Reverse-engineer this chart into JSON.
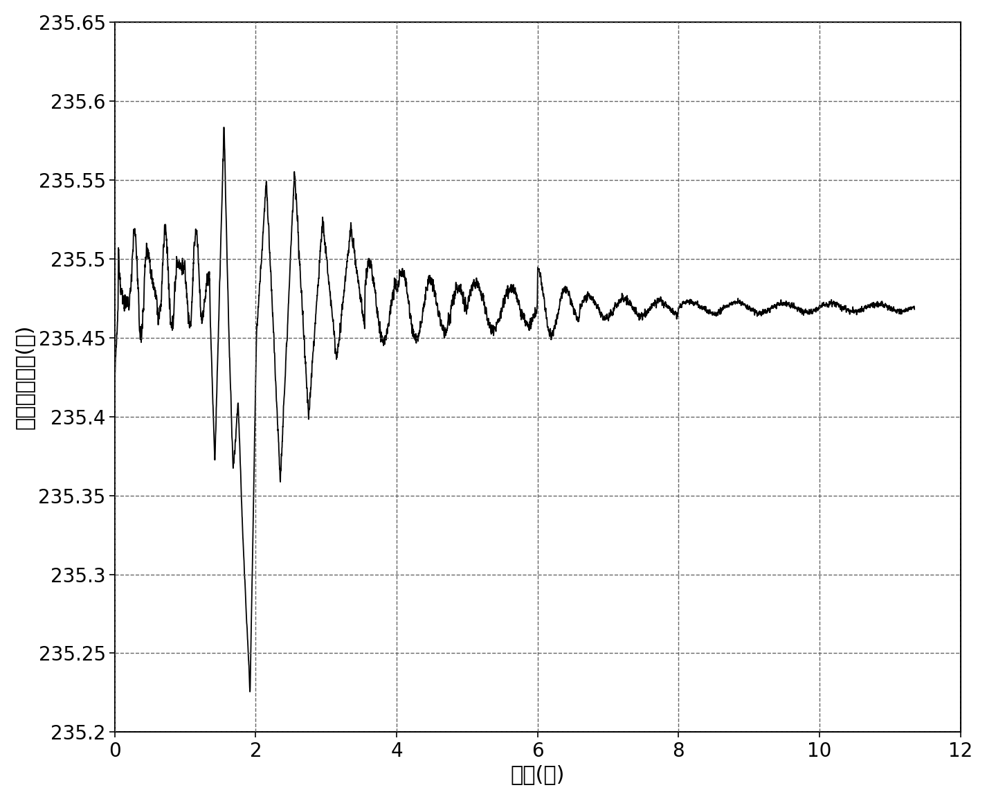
{
  "title": "",
  "xlabel": "时间(秒)",
  "ylabel": "转子机械角度(度)",
  "xlim": [
    0,
    12
  ],
  "ylim": [
    235.2,
    235.65
  ],
  "xticks": [
    0,
    2,
    4,
    6,
    8,
    10,
    12
  ],
  "ytick_values": [
    235.2,
    235.25,
    235.3,
    235.35,
    235.4,
    235.45,
    235.5,
    235.55,
    235.6,
    235.65
  ],
  "ytick_labels": [
    "235.2",
    "235.25",
    "235.3",
    "235.35",
    "235.4",
    "235.45",
    "235.5",
    "235.55",
    "235.6",
    "235.65"
  ],
  "line_color": "#000000",
  "line_width": 1.3,
  "background_color": "#ffffff",
  "grid_color": "#555555",
  "grid_linestyle": "--",
  "steady_state": 235.469,
  "xlabel_fontsize": 22,
  "ylabel_fontsize": 22,
  "tick_fontsize": 20
}
